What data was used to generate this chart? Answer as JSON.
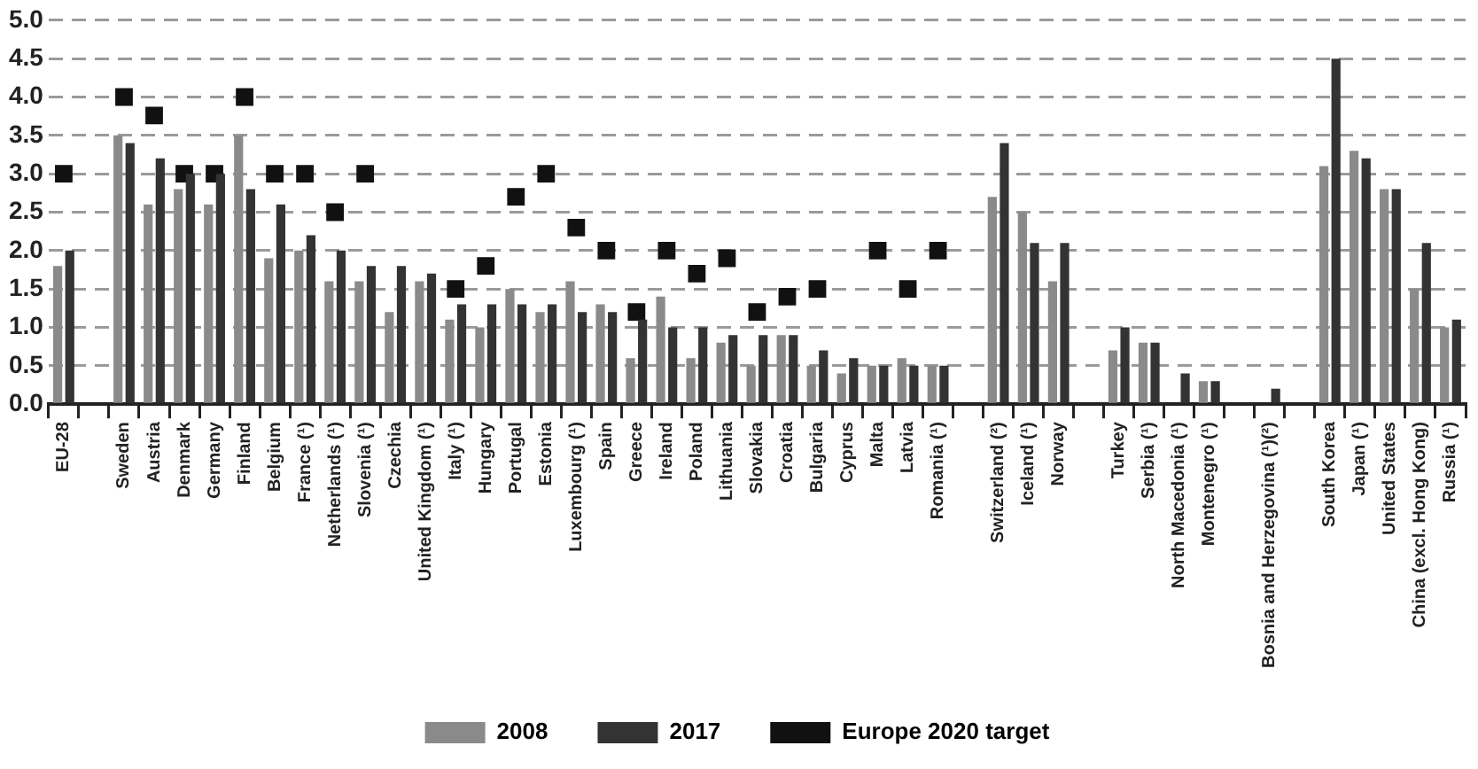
{
  "chart_data": {
    "type": "bar",
    "categories": [
      "EU-28",
      null,
      "Sweden",
      "Austria",
      "Denmark",
      "Germany",
      "Finland",
      "Belgium",
      "France (¹)",
      "Netherlands (¹)",
      "Slovenia (¹)",
      "Czechia",
      "United Kingdom (¹)",
      "Italy (¹)",
      "Hungary",
      "Portugal",
      "Estonia",
      "Luxembourg (¹)",
      "Spain",
      "Greece",
      "Ireland",
      "Poland",
      "Lithuania",
      "Slovakia",
      "Croatia",
      "Bulgaria",
      "Cyprus",
      "Malta",
      "Latvia",
      "Romania (¹)",
      null,
      "Switzerland (²)",
      "Iceland (¹)",
      "Norway",
      null,
      "Turkey",
      "Serbia (¹)",
      "North Macedonia (¹)",
      "Montenegro (¹)",
      null,
      "Bosnia and Herzegovina (¹)(²)",
      null,
      "South Korea",
      "Japan (¹)",
      "United States",
      "China (excl. Hong Kong)",
      "Russia (¹)"
    ],
    "series": [
      {
        "name": "2008",
        "color": "#8a8a8a",
        "values": [
          1.8,
          null,
          3.5,
          2.6,
          2.8,
          2.6,
          3.5,
          1.9,
          2.0,
          1.6,
          1.6,
          1.2,
          1.6,
          1.1,
          1.0,
          1.5,
          1.2,
          1.6,
          1.3,
          0.6,
          1.4,
          0.6,
          0.8,
          0.5,
          0.9,
          0.5,
          0.4,
          0.5,
          0.6,
          0.5,
          null,
          2.7,
          2.5,
          1.6,
          null,
          0.7,
          0.8,
          null,
          0.3,
          null,
          null,
          null,
          3.1,
          3.3,
          2.8,
          1.5,
          1.0
        ]
      },
      {
        "name": "2017",
        "color": "#333333",
        "values": [
          2.0,
          null,
          3.4,
          3.2,
          3.0,
          3.0,
          2.8,
          2.6,
          2.2,
          2.0,
          1.8,
          1.8,
          1.7,
          1.3,
          1.3,
          1.3,
          1.3,
          1.2,
          1.2,
          1.1,
          1.0,
          1.0,
          0.9,
          0.9,
          0.9,
          0.7,
          0.6,
          0.5,
          0.5,
          0.5,
          null,
          3.4,
          2.1,
          2.1,
          null,
          1.0,
          0.8,
          0.4,
          0.3,
          null,
          0.2,
          null,
          4.5,
          3.2,
          2.8,
          2.1,
          1.1
        ]
      },
      {
        "name": "Europe 2020 target",
        "type": "scatter",
        "marker": "square",
        "color": "#111111",
        "x": [
          "EU-28",
          "Sweden",
          "Austria",
          "Denmark",
          "Germany",
          "Finland",
          "Belgium",
          "France (¹)",
          "Netherlands (¹)",
          "Slovenia (¹)",
          "Italy (¹)",
          "Hungary",
          "Portugal",
          "Estonia",
          "Luxembourg (¹)",
          "Spain",
          "Greece",
          "Ireland",
          "Poland",
          "Lithuania",
          "Slovakia",
          "Croatia",
          "Bulgaria",
          "Malta",
          "Latvia",
          "Romania (¹)"
        ],
        "values": [
          3.0,
          4.0,
          3.76,
          3.0,
          3.0,
          4.0,
          3.0,
          3.0,
          2.5,
          3.0,
          1.5,
          1.8,
          2.7,
          3.0,
          2.3,
          2.0,
          1.2,
          2.0,
          1.7,
          1.9,
          1.2,
          1.4,
          1.5,
          2.0,
          1.5,
          2.0
        ]
      }
    ],
    "ylim": [
      0,
      5
    ],
    "yticks": [
      {
        "value": 0,
        "label": "0.0"
      },
      {
        "value": 0.5,
        "label": "0.5"
      },
      {
        "value": 1,
        "label": "1.0"
      },
      {
        "value": 1.5,
        "label": "1.5"
      },
      {
        "value": 2,
        "label": "2.0"
      },
      {
        "value": 2.5,
        "label": "2.5"
      },
      {
        "value": 3,
        "label": "3.0"
      },
      {
        "value": 3.5,
        "label": "3.5"
      },
      {
        "value": 4,
        "label": "4.0"
      },
      {
        "value": 4.5,
        "label": "4.5"
      },
      {
        "value": 5,
        "label": "5.0"
      }
    ],
    "grid": "y",
    "legend": "bottom"
  }
}
